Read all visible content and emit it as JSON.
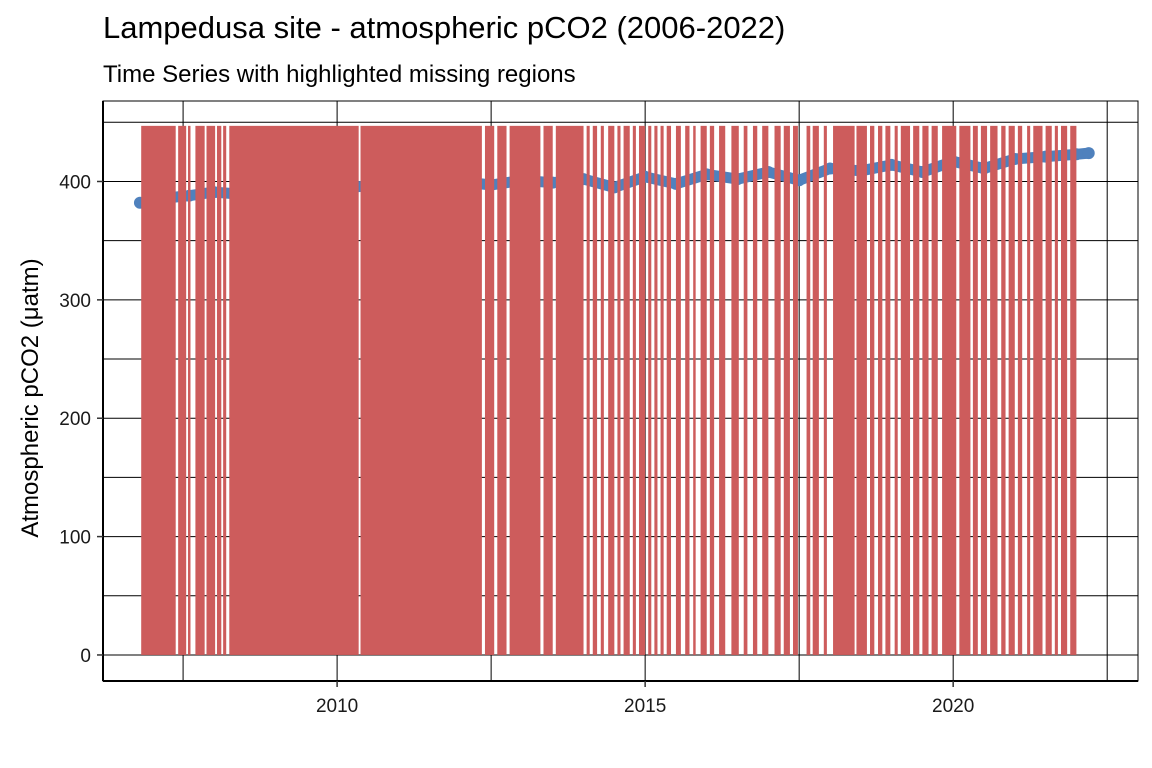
{
  "chart_data": {
    "type": "line",
    "title": "Lampedusa site - atmospheric pCO2 (2006-2022)",
    "subtitle": "Time Series with highlighted missing regions",
    "xlabel": "",
    "ylabel": "Atmospheric pCO2 (μatm)",
    "x_ticks": [
      2010,
      2015,
      2020
    ],
    "y_ticks": [
      0,
      100,
      200,
      300,
      400
    ],
    "xlim": [
      2006.2,
      2023.0
    ],
    "ylim": [
      -22,
      468
    ],
    "grid": true,
    "series": [
      {
        "color": "#4f81bd",
        "points": [
          [
            2006.8,
            382
          ],
          [
            2007.2,
            386
          ],
          [
            2007.6,
            388
          ],
          [
            2008.0,
            391
          ],
          [
            2008.5,
            389
          ],
          [
            2009.0,
            392
          ],
          [
            2009.5,
            394
          ],
          [
            2010.0,
            395
          ],
          [
            2010.5,
            396
          ],
          [
            2011.0,
            397
          ],
          [
            2011.5,
            398
          ],
          [
            2012.0,
            400
          ],
          [
            2012.5,
            397
          ],
          [
            2013.0,
            401
          ],
          [
            2013.5,
            399
          ],
          [
            2014.0,
            402
          ],
          [
            2014.5,
            395
          ],
          [
            2015.0,
            404
          ],
          [
            2015.5,
            398
          ],
          [
            2016.0,
            406
          ],
          [
            2016.5,
            402
          ],
          [
            2017.0,
            408
          ],
          [
            2017.5,
            401
          ],
          [
            2018.0,
            411
          ],
          [
            2018.5,
            409
          ],
          [
            2019.0,
            414
          ],
          [
            2019.5,
            408
          ],
          [
            2020.0,
            417
          ],
          [
            2020.5,
            411
          ],
          [
            2021.0,
            419
          ],
          [
            2021.5,
            421
          ],
          [
            2022.0,
            423
          ],
          [
            2022.2,
            424
          ]
        ]
      }
    ],
    "missing_regions": {
      "color": "#cd5c5c",
      "y_range": [
        0,
        447
      ],
      "intervals": [
        [
          2006.82,
          2007.38
        ],
        [
          2007.42,
          2007.55
        ],
        [
          2007.58,
          2007.62
        ],
        [
          2007.7,
          2007.85
        ],
        [
          2007.88,
          2008.02
        ],
        [
          2008.05,
          2008.12
        ],
        [
          2008.15,
          2008.2
        ],
        [
          2008.25,
          2010.35
        ],
        [
          2010.38,
          2012.35
        ],
        [
          2012.4,
          2012.55
        ],
        [
          2012.6,
          2012.75
        ],
        [
          2012.8,
          2013.3
        ],
        [
          2013.35,
          2013.5
        ],
        [
          2013.55,
          2014.0
        ],
        [
          2014.05,
          2014.1
        ],
        [
          2014.15,
          2014.22
        ],
        [
          2014.28,
          2014.33
        ],
        [
          2014.4,
          2014.5
        ],
        [
          2014.55,
          2014.6
        ],
        [
          2014.65,
          2014.75
        ],
        [
          2014.8,
          2014.85
        ],
        [
          2014.9,
          2015.0
        ],
        [
          2015.05,
          2015.1
        ],
        [
          2015.15,
          2015.2
        ],
        [
          2015.25,
          2015.3
        ],
        [
          2015.35,
          2015.42
        ],
        [
          2015.5,
          2015.58
        ],
        [
          2015.65,
          2015.72
        ],
        [
          2015.78,
          2015.82
        ],
        [
          2015.9,
          2016.0
        ],
        [
          2016.05,
          2016.12
        ],
        [
          2016.2,
          2016.3
        ],
        [
          2016.4,
          2016.52
        ],
        [
          2016.6,
          2016.66
        ],
        [
          2016.75,
          2016.82
        ],
        [
          2016.9,
          2017.0
        ],
        [
          2017.1,
          2017.2
        ],
        [
          2017.25,
          2017.35
        ],
        [
          2017.4,
          2017.48
        ],
        [
          2017.62,
          2017.68
        ],
        [
          2017.72,
          2017.82
        ],
        [
          2017.9,
          2017.95
        ],
        [
          2018.05,
          2018.4
        ],
        [
          2018.43,
          2018.6
        ],
        [
          2018.65,
          2018.72
        ],
        [
          2018.78,
          2018.85
        ],
        [
          2018.9,
          2018.98
        ],
        [
          2019.05,
          2019.1
        ],
        [
          2019.15,
          2019.3
        ],
        [
          2019.35,
          2019.45
        ],
        [
          2019.5,
          2019.6
        ],
        [
          2019.65,
          2019.75
        ],
        [
          2019.82,
          2020.05
        ],
        [
          2020.1,
          2020.28
        ],
        [
          2020.32,
          2020.4
        ],
        [
          2020.45,
          2020.55
        ],
        [
          2020.6,
          2020.72
        ],
        [
          2020.78,
          2020.85
        ],
        [
          2020.9,
          2021.0
        ],
        [
          2021.05,
          2021.12
        ],
        [
          2021.2,
          2021.25
        ],
        [
          2021.3,
          2021.45
        ],
        [
          2021.5,
          2021.6
        ],
        [
          2021.65,
          2021.7
        ],
        [
          2021.75,
          2021.85
        ],
        [
          2021.9,
          2022.0
        ]
      ]
    }
  }
}
